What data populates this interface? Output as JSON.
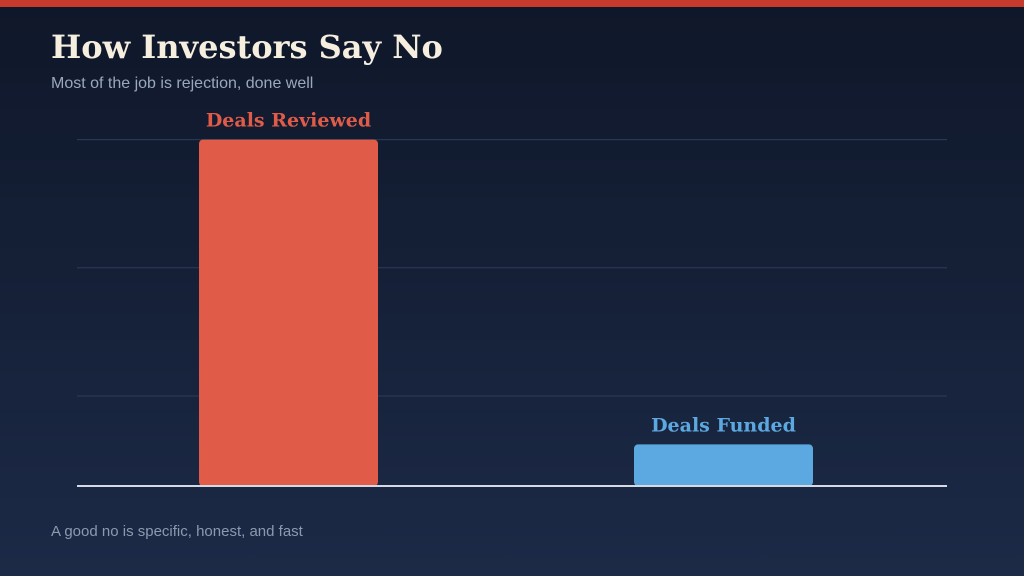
{
  "slide": {
    "title": "How Investors Say No",
    "subtitle": "Most of the job is rejection, done well",
    "footnote": "A good no is specific, honest, and fast",
    "accent_color": "#c93a2e"
  },
  "chart_data": {
    "type": "bar",
    "categories": [
      "Deals Reviewed",
      "Deals Funded"
    ],
    "values": [
      100,
      12
    ],
    "colors": [
      "#e05c49",
      "#5ca8e0"
    ],
    "label_placement": "above-bar",
    "title": "",
    "xlabel": "",
    "ylabel": "",
    "ylim": [
      0,
      110
    ],
    "grid": true
  }
}
